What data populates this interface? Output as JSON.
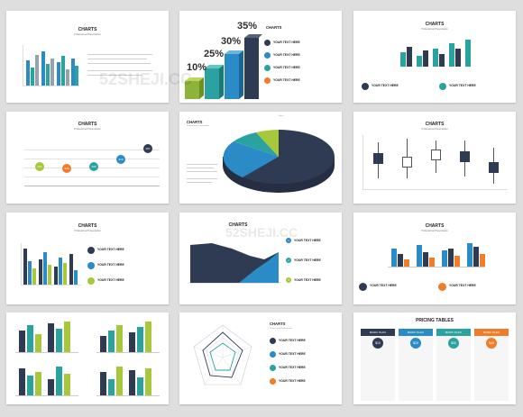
{
  "colors": {
    "green": "#a6c83a",
    "teal": "#2aa3a0",
    "blue": "#2a8bc6",
    "navy": "#2f3b53",
    "orange": "#ef7d2a",
    "gray": "#98a2ad"
  },
  "slides": {
    "charts_title": "CHARTS",
    "subtitle": "Professional Presentation",
    "your_text": "YOUR TEXT HERE",
    "percents": [
      "10%",
      "25%",
      "30%",
      "35%"
    ],
    "bubble_values": [
      "207",
      "208",
      "209",
      "210",
      "287"
    ],
    "pricing_title": "PRICING TABLES",
    "basic_plan": "BASIC PLAN",
    "prices": [
      "$10",
      "$20",
      "$30",
      "$40"
    ],
    "pie_label": "Sales"
  },
  "watermarks": {
    "logo": "52SHEJI.CC"
  }
}
